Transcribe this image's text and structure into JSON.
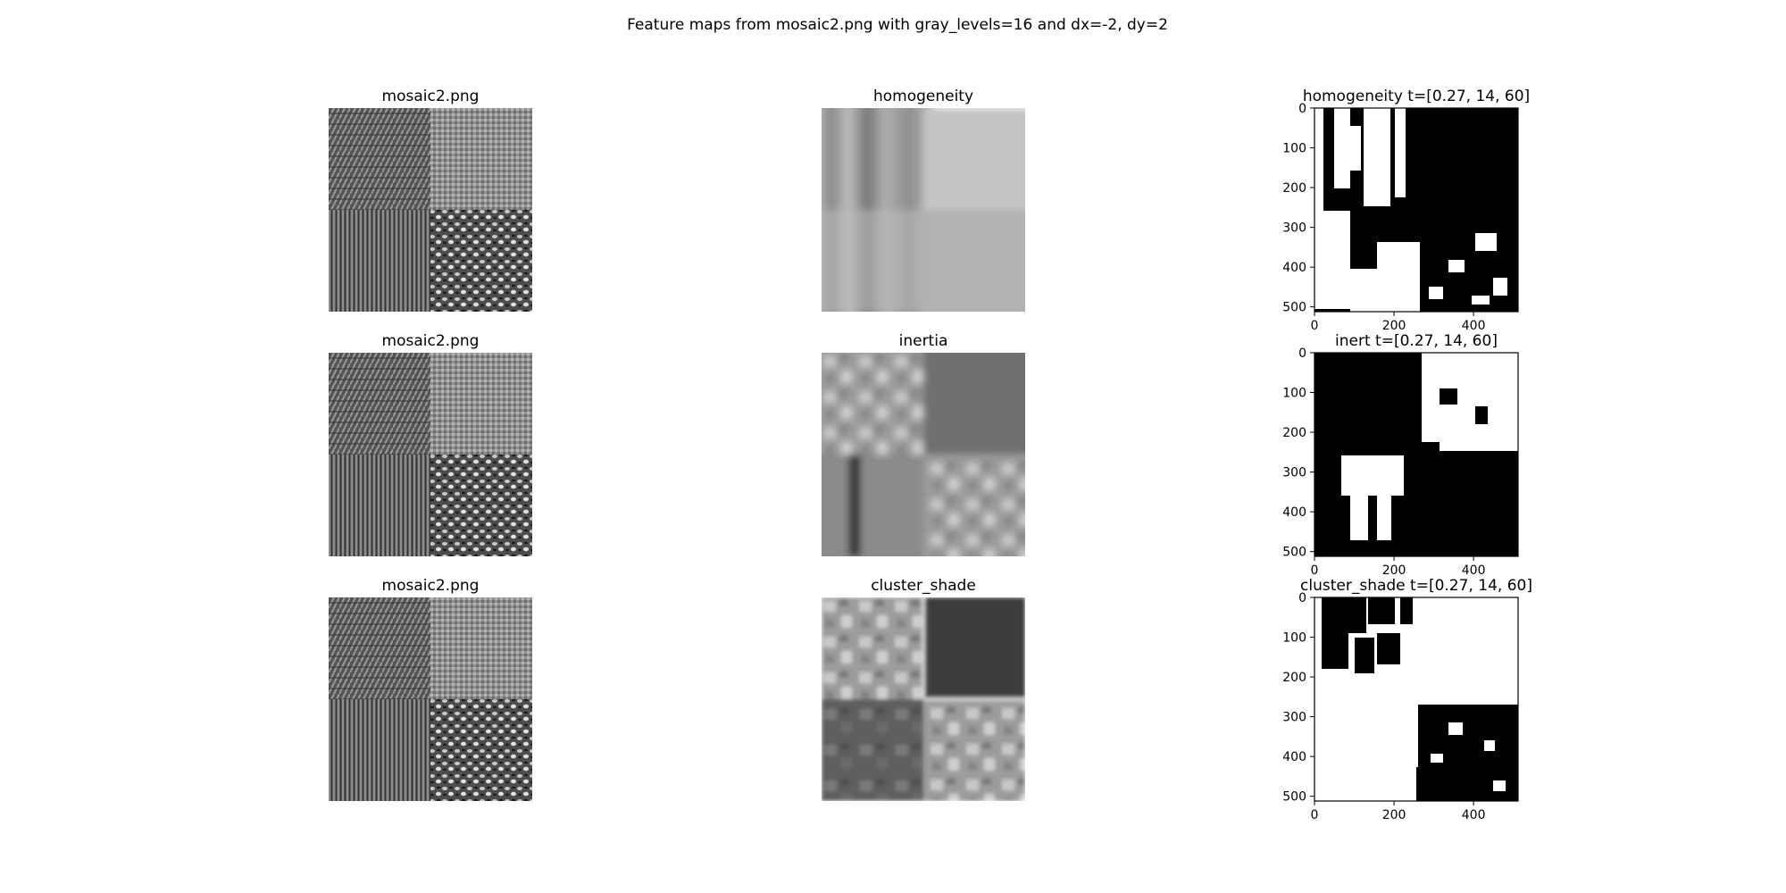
{
  "figure": {
    "suptitle": "Feature maps from mosaic2.png with gray_levels=16 and dx=-2, dy=2"
  },
  "panels": [
    {
      "kind": "image",
      "title": "mosaic2.png",
      "content": "mosaic"
    },
    {
      "kind": "image",
      "title": "homogeneity",
      "content": "homogeneity"
    },
    {
      "kind": "binary",
      "title": "homogeneity t=[0.27, 14, 60]",
      "content": "homogeneity-mask"
    },
    {
      "kind": "image",
      "title": "mosaic2.png",
      "content": "mosaic"
    },
    {
      "kind": "image",
      "title": "inertia",
      "content": "inertia"
    },
    {
      "kind": "binary",
      "title": "inert t=[0.27, 14, 60]",
      "content": "inertia-mask"
    },
    {
      "kind": "image",
      "title": "mosaic2.png",
      "content": "mosaic"
    },
    {
      "kind": "image",
      "title": "cluster_shade",
      "content": "cluster-shade"
    },
    {
      "kind": "binary",
      "title": "cluster_shade t=[0.27, 14, 60]",
      "content": "cluster-shade-mask"
    }
  ],
  "chart_data": {
    "type": "heatmap",
    "title": "Feature maps from mosaic2.png with gray_levels=16 and dx=-2, dy=2",
    "binary_axes": {
      "xlim": [
        0,
        512
      ],
      "ylim": [
        512,
        0
      ],
      "xticks": [
        0,
        200,
        400
      ],
      "yticks": [
        0,
        100,
        200,
        300,
        400,
        500
      ]
    },
    "colormap": "gray"
  }
}
